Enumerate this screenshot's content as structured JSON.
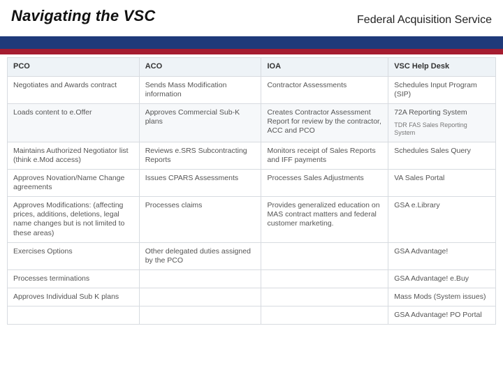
{
  "header": {
    "title": "Navigating the VSC",
    "service_label": "Federal Acquisition Service"
  },
  "colors": {
    "bar_blue": "#1f3a7a",
    "bar_red": "#a51c30",
    "header_bg": "#eef3f7",
    "row_alt_bg": "#f6f8fa",
    "border": "#d7dbe0",
    "text": "#555555",
    "title_text": "#111111"
  },
  "table": {
    "columns": [
      {
        "key": "pco",
        "label": "PCO"
      },
      {
        "key": "aco",
        "label": "ACO"
      },
      {
        "key": "ioa",
        "label": "IOA"
      },
      {
        "key": "vsc",
        "label": "VSC Help Desk"
      }
    ],
    "rows": [
      {
        "pco": "Negotiates and Awards contract",
        "aco": "Sends Mass Modification information",
        "ioa": "Contractor Assessments",
        "vsc": "Schedules Input Program (SIP)"
      },
      {
        "pco": "Loads content to e.Offer",
        "aco": "Approves Commercial Sub-K plans",
        "ioa": "Creates Contractor Assessment Report for review by the contractor, ACC and PCO",
        "vsc": "72A Reporting System",
        "vsc_sub": "TDR FAS Sales Reporting System"
      },
      {
        "pco": "Maintains Authorized Negotiator list (think e.Mod access)",
        "aco": "Reviews e.SRS Subcontracting Reports",
        "ioa": "Monitors receipt of Sales Reports and IFF payments",
        "vsc": "Schedules Sales Query"
      },
      {
        "pco": "Approves Novation/Name Change agreements",
        "aco": "Issues CPARS Assessments",
        "ioa": "Processes Sales Adjustments",
        "vsc": "VA Sales Portal"
      },
      {
        "pco": "Approves Modifications: (affecting prices, additions, deletions, legal name changes but is not limited to these areas)",
        "aco": "Processes claims",
        "ioa": "Provides generalized education on MAS contract matters and federal customer marketing.",
        "vsc": "GSA e.Library"
      },
      {
        "pco": "Exercises Options",
        "aco": "Other delegated duties assigned by the PCO",
        "ioa": "",
        "vsc": "GSA Advantage!"
      },
      {
        "pco": "Processes terminations",
        "aco": "",
        "ioa": "",
        "vsc": "GSA Advantage! e.Buy"
      },
      {
        "pco": "Approves Individual Sub K plans",
        "aco": "",
        "ioa": "",
        "vsc": "Mass Mods (System issues)"
      },
      {
        "pco": "",
        "aco": "",
        "ioa": "",
        "vsc": "GSA Advantage! PO Portal"
      }
    ]
  }
}
